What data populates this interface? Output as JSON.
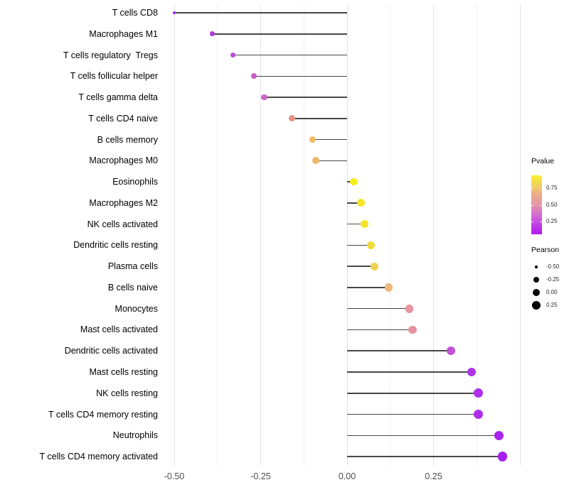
{
  "chart_data": {
    "type": "scatter",
    "variant": "lollipop",
    "title": "",
    "xlabel": "",
    "ylabel": "",
    "xlim": [
      -0.53,
      0.6
    ],
    "x_tick_labels": [
      "-0.50",
      "-0.25",
      "0.00",
      "0.25"
    ],
    "x_tick_values": [
      -0.5,
      -0.25,
      0.0,
      0.25
    ],
    "grid": "vertical-only",
    "points": [
      {
        "label": "T cells CD8",
        "pearson": -0.5,
        "color": "#A32CE8"
      },
      {
        "label": "Macrophages M1",
        "pearson": -0.39,
        "color": "#A839DB"
      },
      {
        "label": "T cells regulatory  Tregs",
        "pearson": -0.33,
        "color": "#BC49DB"
      },
      {
        "label": "T cells follicular helper",
        "pearson": -0.27,
        "color": "#C55CC9"
      },
      {
        "label": "T cells gamma delta",
        "pearson": -0.24,
        "color": "#CB66C5"
      },
      {
        "label": "T cells CD4 naive",
        "pearson": -0.16,
        "color": "#E69183"
      },
      {
        "label": "B cells memory",
        "pearson": -0.1,
        "color": "#EFBA62"
      },
      {
        "label": "Macrophages M0",
        "pearson": -0.09,
        "color": "#EDB76A"
      },
      {
        "label": "Eosinophils",
        "pearson": 0.02,
        "color": "#F6EC1A"
      },
      {
        "label": "Macrophages M2",
        "pearson": 0.04,
        "color": "#F4E625"
      },
      {
        "label": "NK cells activated",
        "pearson": 0.05,
        "color": "#F4E32A"
      },
      {
        "label": "Dendritic cells resting",
        "pearson": 0.07,
        "color": "#F3DC38"
      },
      {
        "label": "Plasma cells",
        "pearson": 0.08,
        "color": "#F0D157"
      },
      {
        "label": "B cells naive",
        "pearson": 0.12,
        "color": "#EDB97B"
      },
      {
        "label": "Monocytes",
        "pearson": 0.18,
        "color": "#E7949E"
      },
      {
        "label": "Mast cells activated",
        "pearson": 0.19,
        "color": "#E7939F"
      },
      {
        "label": "Dendritic cells activated",
        "pearson": 0.3,
        "color": "#C24FD8"
      },
      {
        "label": "Mast cells resting",
        "pearson": 0.36,
        "color": "#B134E6"
      },
      {
        "label": "NK cells resting",
        "pearson": 0.38,
        "color": "#B02EE9"
      },
      {
        "label": "T cells CD4 memory resting",
        "pearson": 0.38,
        "color": "#AF2CE9"
      },
      {
        "label": "Neutrophils",
        "pearson": 0.44,
        "color": "#A824ED"
      },
      {
        "label": "T cells CD4 memory activated",
        "pearson": 0.45,
        "color": "#A621EF"
      }
    ],
    "legend_pvalue": {
      "title": "Pvalue",
      "tick_labels": [
        "0.75",
        "0.50",
        "0.25"
      ],
      "tick_values": [
        0.75,
        0.5,
        0.25
      ],
      "bar_range": [
        0.95,
        0.05
      ],
      "gradient_stops": [
        "#F7F22C",
        "#F2D060",
        "#EBAA8C",
        "#E397A8",
        "#D36CD0",
        "#C240E6",
        "#B318F2"
      ]
    },
    "legend_pearson": {
      "title": "Pearson",
      "entries": [
        {
          "label": "-0.50",
          "value": -0.5
        },
        {
          "label": "-0.25",
          "value": -0.25
        },
        {
          "label": "0.00",
          "value": 0.0
        },
        {
          "label": "0.25",
          "value": 0.25
        }
      ],
      "dot_color": "#000000"
    },
    "style": {
      "stick_color": "#474747",
      "grid_major_color": "#e3e3e3",
      "grid_minor_color": "#f0f0f0",
      "background": "#ffffff"
    }
  }
}
